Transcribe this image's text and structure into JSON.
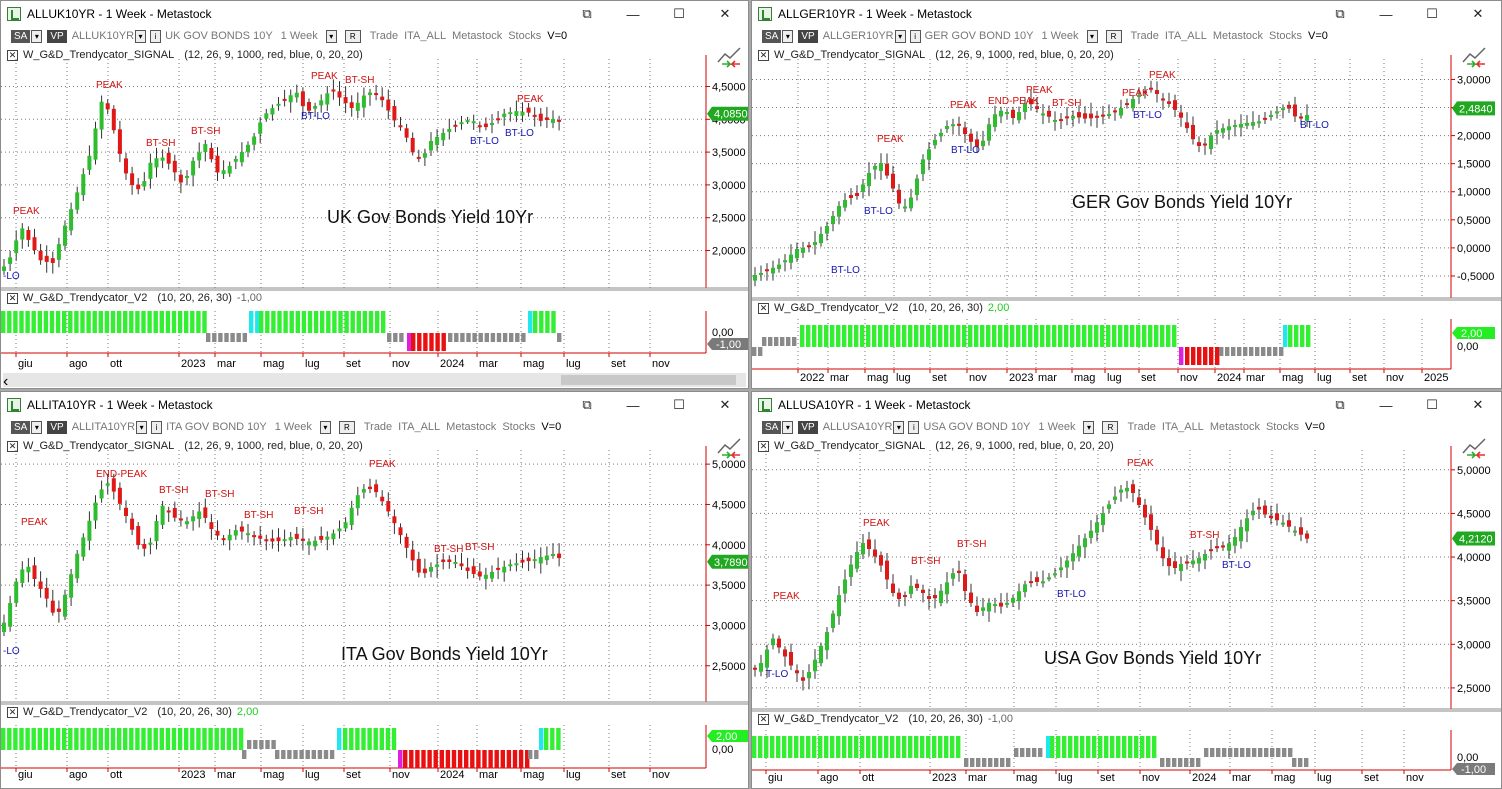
{
  "panels": [
    {
      "id": "uk",
      "title": "ALLUK10YR - 1 Week - Metastock",
      "toolbar": {
        "sa": "SA",
        "vp": "VP",
        "symbol": "ALLUK10YR",
        "description": "UK GOV BONDS 10Y",
        "period": "1 Week",
        "r": "R",
        "trade": "Trade",
        "list": "ITA_ALL",
        "source": "Metastock",
        "type": "Stocks",
        "v": "V=0"
      },
      "signal_label": "W_G&D_Trendycator_SIGNAL",
      "signal_params": "(12, 26, 9, 1000, red, blue, 0, 20, 20)",
      "chart_title": "UK Gov Bonds Yield 10Yr",
      "price_ticks": [
        "4,5000",
        "4,0000",
        "3,5000",
        "3,0000",
        "2,5000",
        "2,0000"
      ],
      "last_price": "4,0850",
      "trend_label": "W_G&D_Trendycator_V2",
      "trend_params": "(10, 20, 26, 30)",
      "trend_value": "-1,00",
      "trend_ticks": [
        "0,00"
      ],
      "trend_last": "-1,00",
      "months": [
        "giu",
        "ago",
        "ott",
        "2023",
        "mar",
        "mag",
        "lug",
        "set",
        "nov",
        "2024",
        "mar",
        "mag",
        "lug",
        "set",
        "nov"
      ],
      "annotations": [
        "PEAK",
        "PEAK",
        "BT-SH",
        "BT-SH",
        "PEAK",
        "BT-SH",
        "BT-LO",
        "PEAK",
        "BT-LO",
        "BT-LO",
        "-LO"
      ]
    },
    {
      "id": "ger",
      "title": "ALLGER10YR - 1 Week - Metastock",
      "toolbar": {
        "sa": "SA",
        "vp": "VP",
        "symbol": "ALLGER10YR",
        "description": "GER GOV BOND 10Y",
        "period": "1 Week",
        "r": "R",
        "trade": "Trade",
        "list": "ITA_ALL",
        "source": "Metastock",
        "type": "Stocks",
        "v": "V=0"
      },
      "signal_label": "W_G&D_Trendycator_SIGNAL",
      "signal_params": "(12, 26, 9, 1000, red, blue, 0, 20, 20)",
      "chart_title": "GER Gov Bonds Yield 10Yr",
      "price_ticks": [
        "3,0000",
        "2,5000",
        "2,0000",
        "1,5000",
        "1,0000",
        "0,5000",
        "0,0000",
        "-0,5000"
      ],
      "last_price": "2,4840",
      "trend_label": "W_G&D_Trendycator_V2",
      "trend_params": "(10, 20, 26, 30)",
      "trend_value": "2,00",
      "trend_ticks": [
        "0,00"
      ],
      "trend_last": "2,00",
      "months": [
        "2022",
        "mar",
        "mag",
        "lug",
        "set",
        "nov",
        "2023",
        "mar",
        "mag",
        "lug",
        "set",
        "nov",
        "2024",
        "mar",
        "mag",
        "lug",
        "set",
        "nov",
        "2025"
      ],
      "annotations": [
        "PEAK",
        "PEAK",
        "END-PEAK",
        "PEAK",
        "BT-SH",
        "PEAK",
        "PEAK",
        "BT-LO",
        "BT-LO",
        "BT-LO",
        "BT-LO",
        "BT-LO"
      ]
    },
    {
      "id": "ita",
      "title": "ALLITA10YR - 1 Week - Metastock",
      "toolbar": {
        "sa": "SA",
        "vp": "VP",
        "symbol": "ALLITA10YR",
        "description": "ITA GOV BOND 10Y",
        "period": "1 Week",
        "r": "R",
        "trade": "Trade",
        "list": "ITA_ALL",
        "source": "Metastock",
        "type": "Stocks",
        "v": "V=0"
      },
      "signal_label": "W_G&D_Trendycator_SIGNAL",
      "signal_params": "(12, 26, 9, 1000, red, blue, 0, 20, 20)",
      "chart_title": "ITA Gov Bonds Yield 10Yr",
      "price_ticks": [
        "5,0000",
        "4,5000",
        "4,0000",
        "3,5000",
        "3,0000",
        "2,5000"
      ],
      "last_price": "3,7890",
      "trend_label": "W_G&D_Trendycator_V2",
      "trend_params": "(10, 20, 26, 30)",
      "trend_value": "2,00",
      "trend_ticks": [
        "0,00"
      ],
      "trend_last": "2,00",
      "months": [
        "giu",
        "ago",
        "ott",
        "2023",
        "mar",
        "mag",
        "lug",
        "set",
        "nov",
        "2024",
        "mar",
        "mag",
        "lug",
        "set",
        "nov"
      ],
      "annotations": [
        "PEAK",
        "END-PEAK",
        "BT-SH",
        "BT-SH",
        "BT-SH",
        "BT-SH",
        "PEAK",
        "BT-SH",
        "BT-SH",
        "-LO"
      ]
    },
    {
      "id": "usa",
      "title": "ALLUSA10YR - 1 Week - Metastock",
      "toolbar": {
        "sa": "SA",
        "vp": "VP",
        "symbol": "ALLUSA10YR",
        "description": "USA GOV BOND 10Y",
        "period": "1 Week",
        "r": "R",
        "trade": "Trade",
        "list": "ITA_ALL",
        "source": "Metastock",
        "type": "Stocks",
        "v": "V=0"
      },
      "signal_label": "W_G&D_Trendycator_SIGNAL",
      "signal_params": "(12, 26, 9, 1000, red, blue, 0, 20, 20)",
      "chart_title": "USA Gov Bonds Yield 10Yr",
      "price_ticks": [
        "5,0000",
        "4,5000",
        "4,0000",
        "3,5000",
        "3,0000",
        "2,5000"
      ],
      "last_price": "4,2120",
      "trend_label": "W_G&D_Trendycator_V2",
      "trend_params": "(10, 20, 26, 30)",
      "trend_value": "-1,00",
      "trend_ticks": [
        "0,00"
      ],
      "trend_last": "-1,00",
      "months": [
        "giu",
        "ago",
        "ott",
        "2023",
        "mar",
        "mag",
        "lug",
        "set",
        "nov",
        "2024",
        "mar",
        "mag",
        "lug",
        "set",
        "nov"
      ],
      "annotations": [
        "PEAK",
        "PEAK",
        "BT-SH",
        "BT-SH",
        "PEAK",
        "BT-SH",
        "BT-LO",
        "BT-LO",
        "T-LO"
      ]
    }
  ],
  "window_buttons": {
    "restore": "⧉",
    "minimize": "—",
    "maximize": "☐",
    "close": "✕"
  },
  "colors": {
    "bull": "#2ebd2e",
    "bear": "#e01818",
    "trend_up": "#33ee33",
    "trend_down": "#e81010",
    "neutral": "#8a8a8a",
    "cyan": "#22e6ee",
    "magenta": "#e020e0",
    "label_red": "#d01010",
    "label_blue": "#1515b0",
    "grid": "#7a7a7a",
    "axis": "#d00000"
  }
}
